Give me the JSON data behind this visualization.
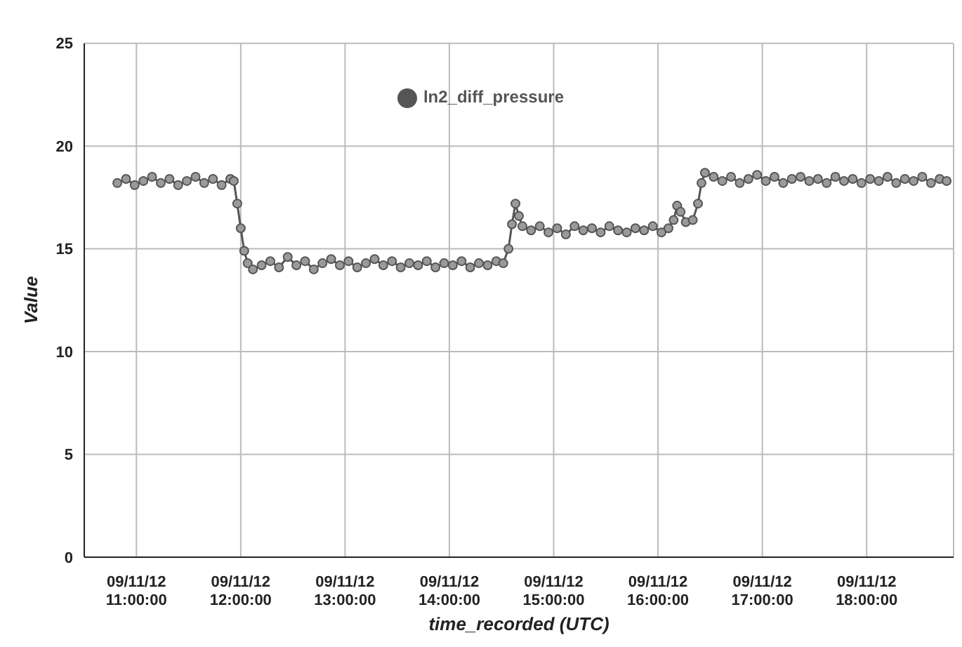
{
  "chart_data": {
    "type": "line",
    "xlabel": "time_recorded (UTC)",
    "ylabel": "Value",
    "series": [
      {
        "name": "ln2_diff_pressure",
        "color": "#555555",
        "x": [
          "--09-11T10:49",
          "--09-11T10:54",
          "--09-11T10:59",
          "--09-11T11:04",
          "--09-11T11:09",
          "--09-11T11:14",
          "--09-11T11:19",
          "--09-11T11:24",
          "--09-11T11:29",
          "--09-11T11:34",
          "--09-11T11:39",
          "--09-11T11:44",
          "--09-11T11:49",
          "--09-11T11:54",
          "--09-11T11:56",
          "--09-11T11:58",
          "--09-11T12:00",
          "--09-11T12:02",
          "--09-11T12:04",
          "--09-11T12:07",
          "--09-11T12:12",
          "--09-11T12:17",
          "--09-11T12:22",
          "--09-11T12:27",
          "--09-11T12:32",
          "--09-11T12:37",
          "--09-11T12:42",
          "--09-11T12:47",
          "--09-11T12:52",
          "--09-11T12:57",
          "--09-11T13:02",
          "--09-11T13:07",
          "--09-11T13:12",
          "--09-11T13:17",
          "--09-11T13:22",
          "--09-11T13:27",
          "--09-11T13:32",
          "--09-11T13:37",
          "--09-11T13:42",
          "--09-11T13:47",
          "--09-11T13:52",
          "--09-11T13:57",
          "--09-11T14:02",
          "--09-11T14:07",
          "--09-11T14:12",
          "--09-11T14:17",
          "--09-11T14:22",
          "--09-11T14:27",
          "--09-11T14:31",
          "--09-11T14:34",
          "--09-11T14:36",
          "--09-11T14:38",
          "--09-11T14:40",
          "--09-11T14:42",
          "--09-11T14:47",
          "--09-11T14:52",
          "--09-11T14:57",
          "--09-11T15:02",
          "--09-11T15:07",
          "--09-11T15:12",
          "--09-11T15:17",
          "--09-11T15:22",
          "--09-11T15:27",
          "--09-11T15:32",
          "--09-11T15:37",
          "--09-11T15:42",
          "--09-11T15:47",
          "--09-11T15:52",
          "--09-11T15:57",
          "--09-11T16:02",
          "--09-11T16:06",
          "--09-11T16:09",
          "--09-11T16:11",
          "--09-11T16:13",
          "--09-11T16:16",
          "--09-11T16:20",
          "--09-11T16:23",
          "--09-11T16:25",
          "--09-11T16:27",
          "--09-11T16:32",
          "--09-11T16:37",
          "--09-11T16:42",
          "--09-11T16:47",
          "--09-11T16:52",
          "--09-11T16:57",
          "--09-11T17:02",
          "--09-11T17:07",
          "--09-11T17:12",
          "--09-11T17:17",
          "--09-11T17:22",
          "--09-11T17:27",
          "--09-11T17:32",
          "--09-11T17:37",
          "--09-11T17:42",
          "--09-11T17:47",
          "--09-11T17:52",
          "--09-11T17:57",
          "--09-11T18:02",
          "--09-11T18:07",
          "--09-11T18:12",
          "--09-11T18:17",
          "--09-11T18:22",
          "--09-11T18:27",
          "--09-11T18:32",
          "--09-11T18:37",
          "--09-11T18:42",
          "--09-11T18:46"
        ],
        "values": [
          18.2,
          18.4,
          18.1,
          18.3,
          18.5,
          18.2,
          18.4,
          18.1,
          18.3,
          18.5,
          18.2,
          18.4,
          18.1,
          18.4,
          18.3,
          17.2,
          16.0,
          14.9,
          14.3,
          14.0,
          14.2,
          14.4,
          14.1,
          14.6,
          14.2,
          14.4,
          14.0,
          14.3,
          14.5,
          14.2,
          14.4,
          14.1,
          14.3,
          14.5,
          14.2,
          14.4,
          14.1,
          14.3,
          14.2,
          14.4,
          14.1,
          14.3,
          14.2,
          14.4,
          14.1,
          14.3,
          14.2,
          14.4,
          14.3,
          15.0,
          16.2,
          17.2,
          16.6,
          16.1,
          15.9,
          16.1,
          15.8,
          16.0,
          15.7,
          16.1,
          15.9,
          16.0,
          15.8,
          16.1,
          15.9,
          15.8,
          16.0,
          15.9,
          16.1,
          15.8,
          16.0,
          16.4,
          17.1,
          16.8,
          16.3,
          16.4,
          17.2,
          18.2,
          18.7,
          18.5,
          18.3,
          18.5,
          18.2,
          18.4,
          18.6,
          18.3,
          18.5,
          18.2,
          18.4,
          18.5,
          18.3,
          18.4,
          18.2,
          18.5,
          18.3,
          18.4,
          18.2,
          18.4,
          18.3,
          18.5,
          18.2,
          18.4,
          18.3,
          18.5,
          18.2,
          18.4,
          18.3
        ]
      }
    ],
    "xlim": [
      "--09-11T10:30",
      "--09-11T18:50"
    ],
    "xticks": [
      {
        "value": "--09-11T11:00",
        "label": "09/11/12\n11:00:00"
      },
      {
        "value": "--09-11T12:00",
        "label": "09/11/12\n12:00:00"
      },
      {
        "value": "--09-11T13:00",
        "label": "09/11/12\n13:00:00"
      },
      {
        "value": "--09-11T14:00",
        "label": "09/11/12\n14:00:00"
      },
      {
        "value": "--09-11T15:00",
        "label": "09/11/12\n15:00:00"
      },
      {
        "value": "--09-11T16:00",
        "label": "09/11/12\n16:00:00"
      },
      {
        "value": "--09-11T17:00",
        "label": "09/11/12\n17:00:00"
      },
      {
        "value": "--09-11T18:00",
        "label": "09/11/12\n18:00:00"
      }
    ],
    "ylim": [
      0,
      25
    ],
    "yticks": [
      0,
      5,
      10,
      15,
      20,
      25
    ],
    "grid": true,
    "legend": "top",
    "marker": "circle",
    "line_style": "solid"
  }
}
